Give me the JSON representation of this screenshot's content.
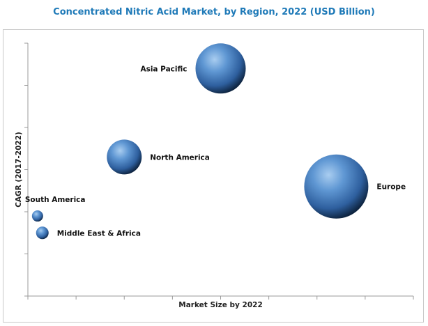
{
  "chart_data": {
    "type": "scatter",
    "title": "Concentrated Nitric Acid Market, by Region, 2022 (USD Billion)",
    "xlabel": "Market Size by 2022",
    "ylabel": "CAGR (2017-2022)",
    "grid": false,
    "points": [
      {
        "label": "Asia Pacific",
        "x": 4.0,
        "y": 5.4,
        "size": 36,
        "label_side": "left"
      },
      {
        "label": "North America",
        "x": 2.0,
        "y": 3.3,
        "size": 25,
        "label_side": "right"
      },
      {
        "label": "Europe",
        "x": 6.4,
        "y": 2.6,
        "size": 46,
        "label_side": "right"
      },
      {
        "label": "South America",
        "x": 0.2,
        "y": 1.9,
        "size": 8,
        "label_side": "above"
      },
      {
        "label": "Middle East & Africa",
        "x": 0.3,
        "y": 1.5,
        "size": 9,
        "label_side": "right"
      }
    ],
    "xlim": [
      0,
      8
    ],
    "ylim": [
      0,
      6
    ]
  }
}
